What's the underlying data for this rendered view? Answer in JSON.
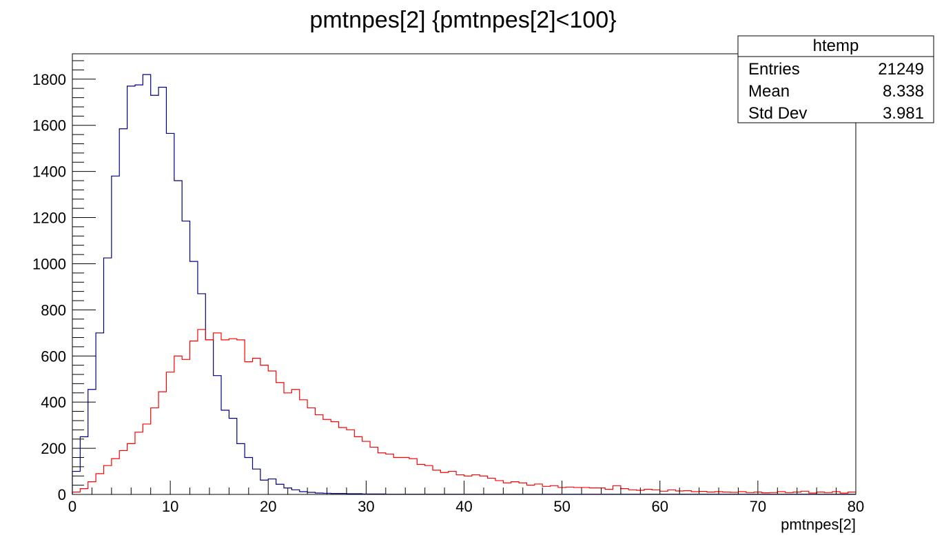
{
  "chart_data": {
    "type": "histogram",
    "title": "pmtnpes[2] {pmtnpes[2]<100}",
    "xlabel": "pmtnpes[2]",
    "ylabel": "",
    "xlim": [
      0,
      80
    ],
    "ylim": [
      0,
      1910
    ],
    "x_ticks": [
      0,
      10,
      20,
      30,
      40,
      50,
      60,
      70,
      80
    ],
    "y_ticks": [
      0,
      200,
      400,
      600,
      800,
      1000,
      1200,
      1400,
      1600,
      1800
    ],
    "bin_width": 0.8,
    "grid": false,
    "series": [
      {
        "color": "#000080",
        "values": [
          100,
          250,
          455,
          700,
          1025,
          1380,
          1585,
          1770,
          1775,
          1820,
          1730,
          1765,
          1565,
          1360,
          1185,
          1010,
          870,
          670,
          515,
          365,
          330,
          220,
          160,
          110,
          62,
          67,
          44,
          28,
          20,
          12,
          9,
          6,
          5,
          4,
          4,
          3,
          3,
          2,
          2,
          2,
          1,
          1,
          1,
          1,
          1,
          1,
          1,
          1,
          1,
          1,
          1,
          1,
          1,
          1,
          1,
          1,
          1,
          1,
          1,
          1,
          1,
          1,
          1,
          1,
          1,
          1,
          1,
          1,
          1,
          1,
          1,
          1,
          1,
          1,
          1,
          1,
          1,
          1,
          1,
          1,
          1,
          1,
          1,
          1,
          1,
          1,
          1,
          1,
          1,
          1,
          1,
          1,
          1,
          1,
          1,
          1,
          1,
          1,
          1,
          1
        ]
      },
      {
        "color": "#ff0000",
        "values": [
          10,
          25,
          55,
          90,
          125,
          155,
          190,
          220,
          270,
          305,
          375,
          445,
          530,
          600,
          585,
          665,
          715,
          670,
          700,
          670,
          675,
          670,
          575,
          590,
          560,
          535,
          485,
          440,
          455,
          410,
          375,
          345,
          325,
          315,
          290,
          280,
          250,
          230,
          205,
          180,
          175,
          160,
          160,
          155,
          130,
          125,
          105,
          95,
          100,
          85,
          80,
          85,
          80,
          70,
          60,
          50,
          55,
          50,
          40,
          45,
          35,
          38,
          30,
          32,
          30,
          30,
          28,
          28,
          22,
          38,
          25,
          20,
          18,
          22,
          20,
          14,
          20,
          15,
          16,
          12,
          13,
          10,
          12,
          10,
          9,
          12,
          8,
          10,
          7,
          8,
          12,
          8,
          10,
          14,
          6,
          10,
          8,
          12,
          6,
          10
        ]
      }
    ],
    "stats_box": {
      "title": "htemp",
      "placement": "top-right",
      "rows": [
        {
          "label": "Entries",
          "value": "21249"
        },
        {
          "label": "Mean",
          "value": "8.338"
        },
        {
          "label": "Std Dev",
          "value": "3.981"
        }
      ]
    }
  }
}
